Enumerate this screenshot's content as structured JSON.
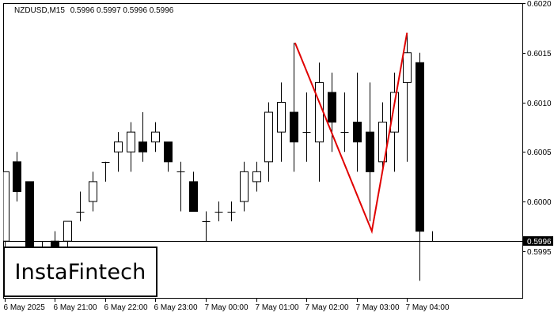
{
  "header": {
    "symbol": "NZDUSD,M15",
    "ohlc": "0.5996 0.5997 0.5996 0.5996"
  },
  "logo": {
    "text": "InstaFintech"
  },
  "colors": {
    "background": "#ffffff",
    "frame": "#000000",
    "candle_up": "#ffffff",
    "candle_down": "#000000",
    "pattern_line": "#e00000",
    "price_line": "#000000",
    "price_tag_bg": "#000000",
    "price_tag_text": "#ffffff"
  },
  "chart_data": {
    "type": "candlestick",
    "timeframe": "M15",
    "ylim": [
      0.599,
      0.602
    ],
    "y_ticks": [
      "0.6020",
      "0.6015",
      "0.6010",
      "0.6005",
      "0.6000",
      "0.5995"
    ],
    "x_ticks": [
      {
        "index": 0,
        "label": "6 May 2025"
      },
      {
        "index": 4,
        "label": "6 May 21:00"
      },
      {
        "index": 8,
        "label": "6 May 22:00"
      },
      {
        "index": 12,
        "label": "6 May 23:00"
      },
      {
        "index": 16,
        "label": "7 May 00:00"
      },
      {
        "index": 20,
        "label": "7 May 01:00"
      },
      {
        "index": 24,
        "label": "7 May 02:00"
      },
      {
        "index": 28,
        "label": "7 May 03:00"
      },
      {
        "index": 32,
        "label": "7 May 04:00"
      }
    ],
    "current_price": "0.5996",
    "candles": [
      {
        "o": 0.5996,
        "h": 0.6003,
        "l": 0.5993,
        "c": 0.6003
      },
      {
        "o": 0.6004,
        "h": 0.6005,
        "l": 0.6,
        "c": 0.6001
      },
      {
        "o": 0.6002,
        "h": 0.6002,
        "l": 0.5995,
        "c": 0.5995
      },
      {
        "o": 0.5994,
        "h": 0.5996,
        "l": 0.5993,
        "c": 0.5995
      },
      {
        "o": 0.5996,
        "h": 0.5997,
        "l": 0.5993,
        "c": 0.5995
      },
      {
        "o": 0.5996,
        "h": 0.5998,
        "l": 0.5994,
        "c": 0.5998
      },
      {
        "o": 0.5999,
        "h": 0.6001,
        "l": 0.5998,
        "c": 0.5999
      },
      {
        "o": 0.6,
        "h": 0.6003,
        "l": 0.5999,
        "c": 0.6002
      },
      {
        "o": 0.6004,
        "h": 0.6004,
        "l": 0.6002,
        "c": 0.6004
      },
      {
        "o": 0.6005,
        "h": 0.6007,
        "l": 0.6003,
        "c": 0.6006
      },
      {
        "o": 0.6005,
        "h": 0.6008,
        "l": 0.6003,
        "c": 0.6007
      },
      {
        "o": 0.6006,
        "h": 0.6009,
        "l": 0.6004,
        "c": 0.6005
      },
      {
        "o": 0.6006,
        "h": 0.6008,
        "l": 0.6005,
        "c": 0.6007
      },
      {
        "o": 0.6006,
        "h": 0.6006,
        "l": 0.6003,
        "c": 0.6004
      },
      {
        "o": 0.6003,
        "h": 0.6004,
        "l": 0.5999,
        "c": 0.6003
      },
      {
        "o": 0.6002,
        "h": 0.6003,
        "l": 0.5999,
        "c": 0.5999
      },
      {
        "o": 0.5998,
        "h": 0.5999,
        "l": 0.5996,
        "c": 0.5998
      },
      {
        "o": 0.5999,
        "h": 0.6,
        "l": 0.5998,
        "c": 0.5999
      },
      {
        "o": 0.5999,
        "h": 0.6,
        "l": 0.5998,
        "c": 0.5999
      },
      {
        "o": 0.6,
        "h": 0.6004,
        "l": 0.5999,
        "c": 0.6003
      },
      {
        "o": 0.6002,
        "h": 0.6004,
        "l": 0.6001,
        "c": 0.6003
      },
      {
        "o": 0.6004,
        "h": 0.601,
        "l": 0.6002,
        "c": 0.6009
      },
      {
        "o": 0.6007,
        "h": 0.6012,
        "l": 0.6004,
        "c": 0.601
      },
      {
        "o": 0.6009,
        "h": 0.6016,
        "l": 0.6003,
        "c": 0.6006
      },
      {
        "o": 0.6007,
        "h": 0.6011,
        "l": 0.6004,
        "c": 0.6007
      },
      {
        "o": 0.6006,
        "h": 0.6014,
        "l": 0.6002,
        "c": 0.6012
      },
      {
        "o": 0.6011,
        "h": 0.6013,
        "l": 0.6005,
        "c": 0.6008
      },
      {
        "o": 0.6007,
        "h": 0.6011,
        "l": 0.6005,
        "c": 0.6007
      },
      {
        "o": 0.6008,
        "h": 0.6013,
        "l": 0.6003,
        "c": 0.6006
      },
      {
        "o": 0.6007,
        "h": 0.6012,
        "l": 0.5998,
        "c": 0.6003
      },
      {
        "o": 0.6004,
        "h": 0.601,
        "l": 0.6003,
        "c": 0.6008
      },
      {
        "o": 0.6007,
        "h": 0.6013,
        "l": 0.6003,
        "c": 0.6011
      },
      {
        "o": 0.6012,
        "h": 0.6017,
        "l": 0.6004,
        "c": 0.6015
      },
      {
        "o": 0.6014,
        "h": 0.6015,
        "l": 0.5992,
        "c": 0.5997
      },
      {
        "o": 0.5996,
        "h": 0.5997,
        "l": 0.5996,
        "c": 0.5996
      }
    ],
    "pattern": {
      "name": "Double Top",
      "points": [
        {
          "index": 23.1,
          "price": 0.6016
        },
        {
          "index": 29.2,
          "price": 0.5997
        },
        {
          "index": 32.0,
          "price": 0.6017
        }
      ]
    },
    "grid": false
  }
}
